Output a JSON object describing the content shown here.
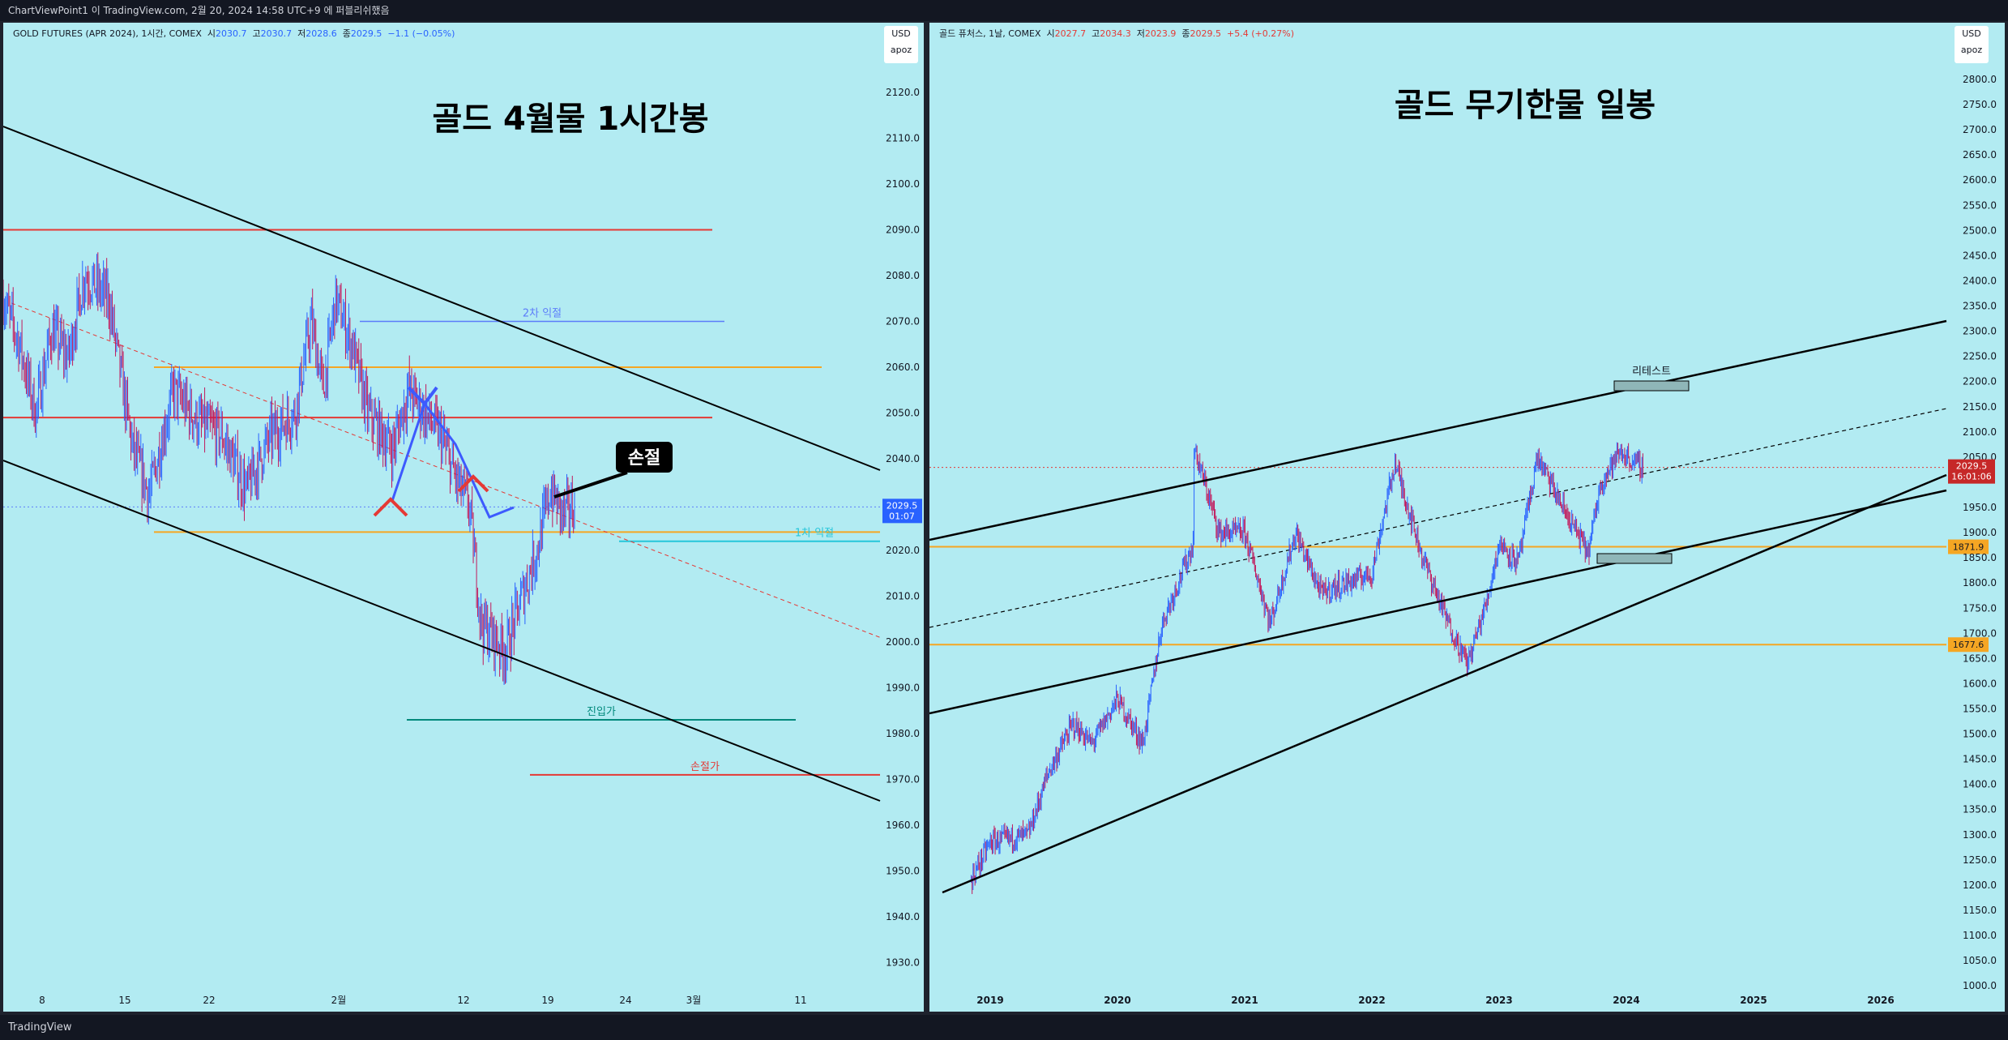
{
  "header": {
    "author_line": "ChartViewPoint1 이 TradingView.com, 2월 20, 2024 14:58 UTC+9 에 퍼블리쉬했음"
  },
  "footer": {
    "brand": "TradingView"
  },
  "colors": {
    "panel_bg": "#b2ebf2",
    "candle_up": "#2962ff",
    "candle_down": "#c2185b",
    "red_line": "#e53935",
    "orange_line": "#f5a623",
    "blue_line": "#5c7cfa",
    "teal_line": "#00897b",
    "cyan_line": "#26c6da"
  },
  "left": {
    "legend": {
      "symbol": "GOLD FUTURES (APR 2024), 1시간, COMEX",
      "o_label": "시",
      "o": "2030.7",
      "h_label": "고",
      "h": "2030.7",
      "l_label": "저",
      "l": "2028.6",
      "c_label": "종",
      "c": "2029.5",
      "chg": "−1.1 (−0.05%)"
    },
    "currency": "USD",
    "scale_mode": "apoz"
  },
  "right": {
    "legend": {
      "symbol": "골드 퓨처스, 1날, COMEX",
      "o_label": "시",
      "o": "2027.7",
      "h_label": "고",
      "h": "2034.3",
      "l_label": "저",
      "l": "2023.9",
      "c_label": "종",
      "c": "2029.5",
      "chg": "+5.4 (+0.27%)"
    },
    "currency": "USD",
    "scale_mode": "apoz"
  },
  "chart_data": [
    {
      "type": "candlestick",
      "panel": "left",
      "title": "골드 4월물 1시간봉",
      "y_ticks": [
        2120.0,
        2110.0,
        2100.0,
        2090.0,
        2080.0,
        2070.0,
        2060.0,
        2050.0,
        2040.0,
        2030.0,
        2020.0,
        2010.0,
        2000.0,
        1990.0,
        1980.0,
        1970.0,
        1960.0,
        1950.0,
        1940.0,
        1930.0
      ],
      "ylim": [
        1921,
        2137
      ],
      "x_ticks": [
        "8",
        "15",
        "22",
        "2월",
        "12",
        "19",
        "24",
        "3월",
        "11"
      ],
      "price_path": [
        [
          0,
          2075
        ],
        [
          0.02,
          2065
        ],
        [
          0.04,
          2050
        ],
        [
          0.06,
          2068
        ],
        [
          0.08,
          2062
        ],
        [
          0.1,
          2080
        ],
        [
          0.13,
          2075
        ],
        [
          0.16,
          2042
        ],
        [
          0.18,
          2032
        ],
        [
          0.21,
          2055
        ],
        [
          0.24,
          2048
        ],
        [
          0.27,
          2045
        ],
        [
          0.3,
          2033
        ],
        [
          0.33,
          2045
        ],
        [
          0.36,
          2050
        ],
        [
          0.38,
          2070
        ],
        [
          0.395,
          2055
        ],
        [
          0.41,
          2075
        ],
        [
          0.43,
          2065
        ],
        [
          0.45,
          2050
        ],
        [
          0.48,
          2042
        ],
        [
          0.5,
          2055
        ],
        [
          0.52,
          2050
        ],
        [
          0.54,
          2045
        ],
        [
          0.56,
          2035
        ],
        [
          0.575,
          2030
        ],
        [
          0.59,
          2004
        ],
        [
          0.62,
          1998
        ],
        [
          0.64,
          2010
        ],
        [
          0.66,
          2021
        ],
        [
          0.675,
          2033
        ],
        [
          0.69,
          2028
        ],
        [
          0.705,
          2029.5
        ]
      ],
      "last_price": 2029.5,
      "last_price_timer": "01:07",
      "hlines": [
        {
          "price": 2090,
          "color": "red"
        },
        {
          "price": 2049,
          "color": "red"
        },
        {
          "price": 2060,
          "color": "orange"
        },
        {
          "price": 2024,
          "color": "orange"
        },
        {
          "price": 2070,
          "color": "blue",
          "label": "2차 익절"
        },
        {
          "price": 2022,
          "color": "cyan",
          "label": "1차 익절"
        },
        {
          "price": 1983,
          "color": "teal",
          "label": "진입가"
        },
        {
          "price": 1971,
          "color": "red",
          "label": "손절가"
        }
      ],
      "annotation": "손절"
    },
    {
      "type": "candlestick",
      "panel": "right",
      "title": "골드 무기한물 일봉",
      "y_ticks": [
        2800.0,
        2750.0,
        2700.0,
        2650.0,
        2600.0,
        2550.0,
        2500.0,
        2450.0,
        2400.0,
        2350.0,
        2300.0,
        2250.0,
        2200.0,
        2150.0,
        2100.0,
        2050.0,
        1950.0,
        1900.0,
        1850.0,
        1800.0,
        1750.0,
        1700.0,
        1650.0,
        1600.0,
        1550.0,
        1500.0,
        1450.0,
        1400.0,
        1350.0,
        1300.0,
        1250.0,
        1200.0,
        1150.0,
        1100.0,
        1050.0,
        1000.0
      ],
      "ylim": [
        985,
        2835
      ],
      "x_ticks": [
        "2019",
        "2020",
        "2021",
        "2022",
        "2023",
        "2024",
        "2025",
        "2026"
      ],
      "price_path": [
        [
          2018.85,
          1210
        ],
        [
          2019.0,
          1285
        ],
        [
          2019.3,
          1300
        ],
        [
          2019.45,
          1420
        ],
        [
          2019.65,
          1520
        ],
        [
          2019.8,
          1480
        ],
        [
          2020.0,
          1570
        ],
        [
          2020.2,
          1480
        ],
        [
          2020.35,
          1720
        ],
        [
          2020.6,
          1880
        ],
        [
          2020.6,
          2070
        ],
        [
          2020.8,
          1900
        ],
        [
          2021.0,
          1900
        ],
        [
          2021.2,
          1720
        ],
        [
          2021.4,
          1900
        ],
        [
          2021.6,
          1780
        ],
        [
          2021.8,
          1800
        ],
        [
          2022.0,
          1820
        ],
        [
          2022.18,
          2040
        ],
        [
          2022.4,
          1850
        ],
        [
          2022.6,
          1720
        ],
        [
          2022.75,
          1640
        ],
        [
          2022.9,
          1760
        ],
        [
          2023.0,
          1880
        ],
        [
          2023.15,
          1840
        ],
        [
          2023.3,
          2050
        ],
        [
          2023.5,
          1950
        ],
        [
          2023.7,
          1860
        ],
        [
          2023.8,
          2000
        ],
        [
          2023.95,
          2060
        ],
        [
          2024.0,
          2050
        ],
        [
          2024.13,
          2029.5
        ]
      ],
      "last_price": 2029.5,
      "last_price_timer": "16:01:06",
      "hlines": [
        {
          "price": 1871.9,
          "color": "orange"
        },
        {
          "price": 1677.6,
          "color": "orange"
        }
      ],
      "annotation": "리테스트"
    }
  ]
}
